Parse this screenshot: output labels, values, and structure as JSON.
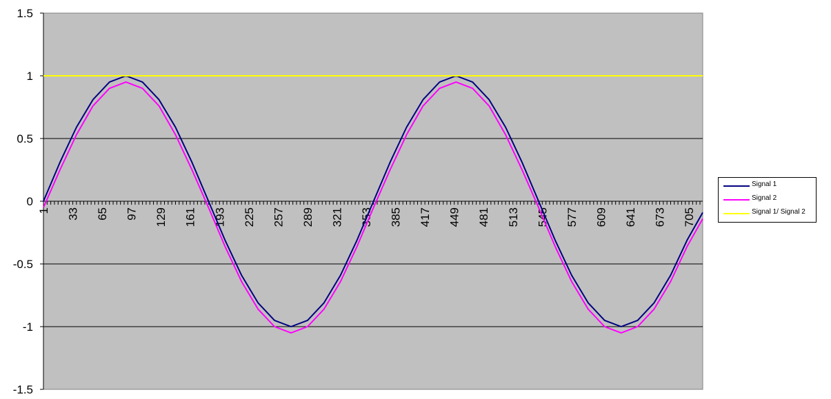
{
  "chart_data": {
    "type": "line",
    "title": "",
    "xlabel": "",
    "ylabel": "",
    "ylim": [
      -1.5,
      1.5
    ],
    "xlim": [
      1,
      720
    ],
    "y_ticks": [
      "1.5",
      "1",
      "0.5",
      "0",
      "-0.5",
      "-1",
      "-1.5"
    ],
    "x_tick_labels": [
      "1",
      "33",
      "65",
      "97",
      "129",
      "161",
      "193",
      "225",
      "257",
      "289",
      "321",
      "353",
      "385",
      "417",
      "449",
      "481",
      "513",
      "545",
      "577",
      "609",
      "641",
      "673",
      "705"
    ],
    "grid": "horizontal",
    "plot_background": "#c0c0c0",
    "legend_position": "right",
    "series": [
      {
        "name": "Signal 1",
        "color": "#000080",
        "x": [
          1,
          19,
          37,
          55,
          73,
          91,
          109,
          127,
          145,
          163,
          181,
          199,
          217,
          235,
          253,
          271,
          289,
          307,
          325,
          343,
          361,
          379,
          397,
          415,
          433,
          451,
          469,
          487,
          505,
          523,
          541,
          559,
          577,
          595,
          613,
          631,
          649,
          667,
          685,
          703,
          720
        ],
        "values": [
          0.0,
          0.31,
          0.59,
          0.81,
          0.95,
          1.0,
          0.95,
          0.81,
          0.59,
          0.31,
          0.0,
          -0.31,
          -0.59,
          -0.81,
          -0.95,
          -1.0,
          -0.95,
          -0.81,
          -0.59,
          -0.31,
          0.0,
          0.31,
          0.59,
          0.81,
          0.95,
          1.0,
          0.95,
          0.81,
          0.59,
          0.31,
          0.0,
          -0.31,
          -0.59,
          -0.81,
          -0.95,
          -1.0,
          -0.95,
          -0.81,
          -0.59,
          -0.31,
          -0.09
        ]
      },
      {
        "name": "Signal 2",
        "color": "#ff00ff",
        "x": [
          1,
          19,
          37,
          55,
          73,
          91,
          109,
          127,
          145,
          163,
          181,
          199,
          217,
          235,
          253,
          271,
          289,
          307,
          325,
          343,
          361,
          379,
          397,
          415,
          433,
          451,
          469,
          487,
          505,
          523,
          541,
          559,
          577,
          595,
          613,
          631,
          649,
          667,
          685,
          703,
          720
        ],
        "values": [
          -0.05,
          0.25,
          0.53,
          0.76,
          0.9,
          0.95,
          0.9,
          0.76,
          0.53,
          0.25,
          -0.05,
          -0.36,
          -0.64,
          -0.86,
          -1.0,
          -1.05,
          -1.0,
          -0.86,
          -0.64,
          -0.36,
          -0.05,
          0.25,
          0.53,
          0.76,
          0.9,
          0.95,
          0.9,
          0.76,
          0.53,
          0.25,
          -0.05,
          -0.36,
          -0.64,
          -0.86,
          -1.0,
          -1.05,
          -1.0,
          -0.86,
          -0.64,
          -0.36,
          -0.14
        ]
      },
      {
        "name": "Signal 1/ Signal 2",
        "color": "#ffff00",
        "x": [
          1,
          720
        ],
        "values": [
          1.0,
          1.0
        ]
      }
    ]
  }
}
